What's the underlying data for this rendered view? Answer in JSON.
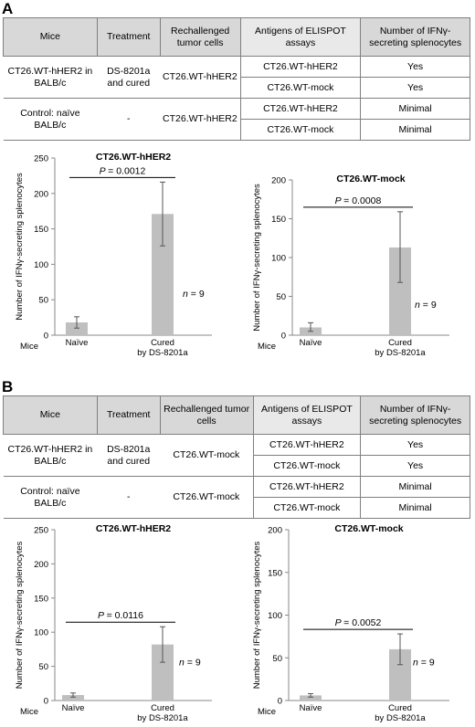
{
  "panels": [
    {
      "letter": "A",
      "table": {
        "headers": [
          "Mice",
          "Treatment",
          "Rechallenged tumor cells",
          "Antigens of ELISPOT assays",
          "Number of IFNγ-secreting splenocytes"
        ],
        "groups": [
          {
            "mice": "CT26.WT-hHER2 in BALB/c",
            "treatment": "DS-8201a and cured",
            "rechallenged": "CT26.WT-hHER2",
            "rows": [
              {
                "antigen": "CT26.WT-hHER2",
                "result": "Yes"
              },
              {
                "antigen": "CT26.WT-mock",
                "result": "Yes"
              }
            ]
          },
          {
            "mice": "Control: naïve BALB/c",
            "treatment": "-",
            "rechallenged": "CT26.WT-hHER2",
            "rows": [
              {
                "antigen": "CT26.WT-hHER2",
                "result": "Minimal"
              },
              {
                "antigen": "CT26.WT-mock",
                "result": "Minimal"
              }
            ]
          }
        ]
      }
    },
    {
      "letter": "B",
      "table": {
        "headers": [
          "Mice",
          "Treatment",
          "Rechallenged tumor cells",
          "Antigens of ELISPOT assays",
          "Number of IFNγ-secreting splenocytes"
        ],
        "groups": [
          {
            "mice": "CT26.WT-hHER2 in BALB/c",
            "treatment": "DS-8201a and cured",
            "rechallenged": "CT26.WT-mock",
            "rows": [
              {
                "antigen": "CT26.WT-hHER2",
                "result": "Yes"
              },
              {
                "antigen": "CT26.WT-mock",
                "result": "Yes"
              }
            ]
          },
          {
            "mice": "Control: naïve BALB/c",
            "treatment": "-",
            "rechallenged": "CT26.WT-mock",
            "rows": [
              {
                "antigen": "CT26.WT-hHER2",
                "result": "Minimal"
              },
              {
                "antigen": "CT26.WT-mock",
                "result": "Minimal"
              }
            ]
          }
        ]
      }
    }
  ],
  "chart_data": [
    {
      "type": "bar",
      "title": "CT26.WT-hHER2",
      "ylabel": "Number of IFNγ-secreting splenocytes",
      "xlabel": "Mice",
      "categories": [
        "Naïve",
        "Cured by DS-8201a"
      ],
      "values": [
        18,
        171
      ],
      "error_low": [
        10,
        126
      ],
      "error_high": [
        26,
        216
      ],
      "ylim": [
        0,
        250
      ],
      "yticks": [
        0,
        50,
        100,
        150,
        200,
        250
      ],
      "p_value": "= 0.0012",
      "n_label": "= 9",
      "color": "#bfbfbf"
    },
    {
      "type": "bar",
      "title": "CT26.WT-mock",
      "ylabel": "Number of IFNγ-secreting splenocytes",
      "xlabel": "Mice",
      "categories": [
        "Naïve",
        "Cured by DS-8201a"
      ],
      "values": [
        10,
        113
      ],
      "error_low": [
        5,
        68
      ],
      "error_high": [
        16,
        159
      ],
      "ylim": [
        0,
        200
      ],
      "yticks": [
        0,
        50,
        100,
        150,
        200
      ],
      "p_value": "= 0.0008",
      "n_label": "= 9",
      "color": "#bfbfbf"
    },
    {
      "type": "bar",
      "title": "CT26.WT-hHER2",
      "ylabel": "Number of IFNγ-secreting splenocytes",
      "xlabel": "Mice",
      "categories": [
        "Naïve",
        "Cured by DS-8201a"
      ],
      "values": [
        8,
        82
      ],
      "error_low": [
        5,
        56
      ],
      "error_high": [
        11,
        108
      ],
      "ylim": [
        0,
        250
      ],
      "yticks": [
        0,
        50,
        100,
        150,
        200,
        250
      ],
      "p_value": "= 0.0116",
      "n_label": "= 9",
      "color": "#bfbfbf"
    },
    {
      "type": "bar",
      "title": "CT26.WT-mock",
      "ylabel": "Number of IFNγ-secreting splenocytes",
      "xlabel": "Mice",
      "categories": [
        "Naïve",
        "Cured by DS-8201a"
      ],
      "values": [
        6,
        60
      ],
      "error_low": [
        4,
        42
      ],
      "error_high": [
        8,
        78
      ],
      "ylim": [
        0,
        200
      ],
      "yticks": [
        0,
        50,
        100,
        150,
        200
      ],
      "p_value": "= 0.0052",
      "n_label": "= 9",
      "color": "#bfbfbf"
    }
  ]
}
